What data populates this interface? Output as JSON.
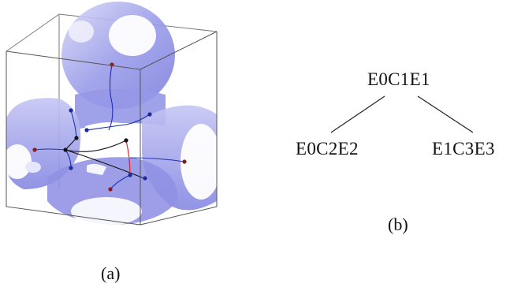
{
  "figures": [
    {
      "caption": "(a)",
      "graph": {
        "nodes": [
          {
            "id": "n1",
            "color": "red"
          },
          {
            "id": "n2",
            "color": "blue"
          },
          {
            "id": "n3",
            "color": "blue"
          },
          {
            "id": "n4",
            "color": "black"
          },
          {
            "id": "n5",
            "color": "blue"
          },
          {
            "id": "n6",
            "color": "black"
          },
          {
            "id": "n7",
            "color": "black"
          },
          {
            "id": "n8",
            "color": "red"
          },
          {
            "id": "n9",
            "color": "blue"
          },
          {
            "id": "n10",
            "color": "blue"
          },
          {
            "id": "n11",
            "color": "blue"
          },
          {
            "id": "n12",
            "color": "red"
          },
          {
            "id": "n13",
            "color": "red"
          }
        ]
      }
    },
    {
      "caption": "(b)",
      "tree": {
        "root": "E0C1E1",
        "children": [
          "E0C2E2",
          "E1C3E3"
        ]
      }
    }
  ],
  "colors": {
    "surface": "#8c8ee6",
    "surface_light": "#c8c9f3",
    "box_edge": "#555555",
    "branch_blue": "#1b2fb3",
    "branch_red": "#d21e1e",
    "node_red": "#8b1a1a",
    "node_blue": "#1c2a9c",
    "node_black": "#111111"
  }
}
